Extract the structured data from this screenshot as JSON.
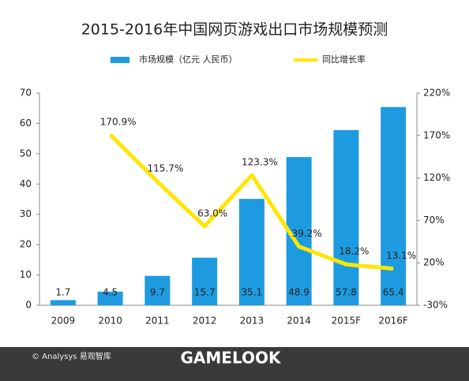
{
  "chart_data": {
    "type": "bar_line",
    "title": "2015-2016年中国网页游戏出口市场规模预测",
    "categories": [
      "2009",
      "2010",
      "2011",
      "2012",
      "2013",
      "2014",
      "2015F",
      "2016F"
    ],
    "series": [
      {
        "name": "市场规模（亿元 人民币）",
        "color": "#1e9be0",
        "type": "bar",
        "values": [
          1.7,
          4.5,
          9.7,
          15.7,
          35.1,
          48.9,
          57.8,
          65.4
        ]
      },
      {
        "name": "同比增长率",
        "color": "#ffe600",
        "type": "line",
        "axis": "y2",
        "values": [
          null,
          170.9,
          115.7,
          63.0,
          123.3,
          39.2,
          18.2,
          13.1
        ],
        "value_labels": [
          null,
          "170.9%",
          "115.7%",
          "63.0%",
          "123.3%",
          "39.2%",
          "18.2%",
          "13.1%"
        ]
      }
    ],
    "ylim": [
      0,
      70
    ],
    "yticks": [
      0,
      10,
      20,
      30,
      40,
      50,
      60,
      70
    ],
    "y2lim": [
      -30,
      220
    ],
    "y2ticks": [
      {
        "value": -30,
        "label": "-30%"
      },
      {
        "value": 20,
        "label": "20%"
      },
      {
        "value": 70,
        "label": "70%"
      },
      {
        "value": 120,
        "label": "120%"
      },
      {
        "value": 170,
        "label": "170%"
      },
      {
        "value": 220,
        "label": "220%"
      }
    ],
    "legend": "top",
    "source": "© Analysys 易观智库",
    "watermark": "GAMELOOK"
  }
}
